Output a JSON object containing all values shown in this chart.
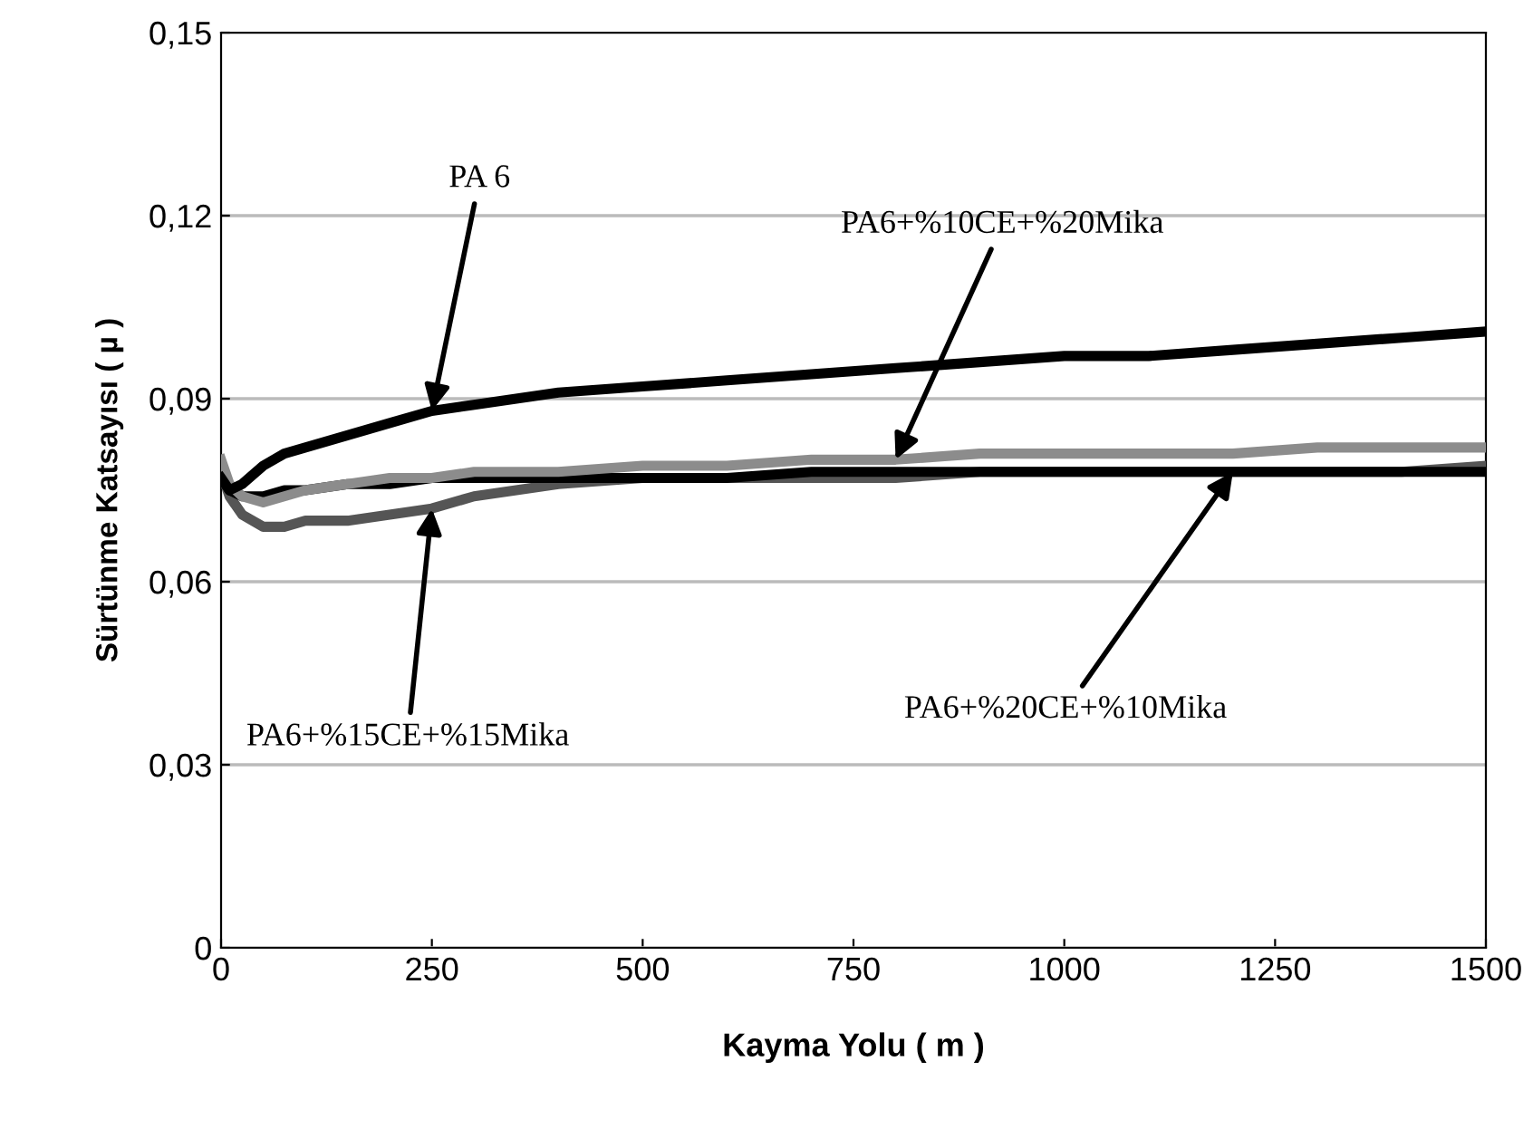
{
  "chart_data": {
    "type": "line",
    "xlabel": "Kayma Yolu ( m )",
    "ylabel": "Sürtünme Katsayısı ( µ )",
    "x": [
      0,
      10,
      25,
      50,
      75,
      100,
      150,
      200,
      250,
      300,
      400,
      500,
      600,
      700,
      800,
      900,
      1000,
      1100,
      1200,
      1300,
      1400,
      1500
    ],
    "series": [
      {
        "name": "PA 6",
        "color": "#000000",
        "values": [
          0.077,
          0.075,
          0.076,
          0.079,
          0.081,
          0.082,
          0.084,
          0.086,
          0.088,
          0.089,
          0.091,
          0.092,
          0.093,
          0.094,
          0.095,
          0.096,
          0.097,
          0.097,
          0.098,
          0.099,
          0.1,
          0.101
        ]
      },
      {
        "name": "PA6+%10CE+%20Mika",
        "color": "#8c8c8c",
        "values": [
          0.08,
          0.076,
          0.074,
          0.073,
          0.074,
          0.075,
          0.076,
          0.077,
          0.077,
          0.078,
          0.078,
          0.079,
          0.079,
          0.08,
          0.08,
          0.081,
          0.081,
          0.081,
          0.081,
          0.082,
          0.082,
          0.082
        ]
      },
      {
        "name": "PA6+%20CE+%10Mika",
        "color": "#000000",
        "values": [
          0.077,
          0.075,
          0.074,
          0.074,
          0.075,
          0.075,
          0.076,
          0.076,
          0.077,
          0.077,
          0.077,
          0.077,
          0.077,
          0.078,
          0.078,
          0.078,
          0.078,
          0.078,
          0.078,
          0.078,
          0.078,
          0.078
        ]
      },
      {
        "name": "PA6+%15CE+%15Mika",
        "color": "#555555",
        "values": [
          0.078,
          0.074,
          0.071,
          0.069,
          0.069,
          0.07,
          0.07,
          0.071,
          0.072,
          0.074,
          0.076,
          0.077,
          0.077,
          0.077,
          0.077,
          0.078,
          0.078,
          0.078,
          0.078,
          0.078,
          0.078,
          0.079
        ]
      }
    ],
    "xlim": [
      0,
      1500
    ],
    "xticks": [
      0,
      250,
      500,
      750,
      1000,
      1250,
      1500
    ],
    "ylim": [
      0,
      0.15
    ],
    "yticks": [
      0,
      {
        "value": 0.03,
        "label": "0,03"
      },
      {
        "value": 0.06,
        "label": "0,06"
      },
      {
        "value": 0.09,
        "label": "0,09"
      },
      {
        "value": 0.12,
        "label": "0,12"
      },
      {
        "value": 0.15,
        "label": "0,15"
      }
    ],
    "grid": "y",
    "legend": false,
    "marker": "none",
    "line_style": "solid"
  }
}
